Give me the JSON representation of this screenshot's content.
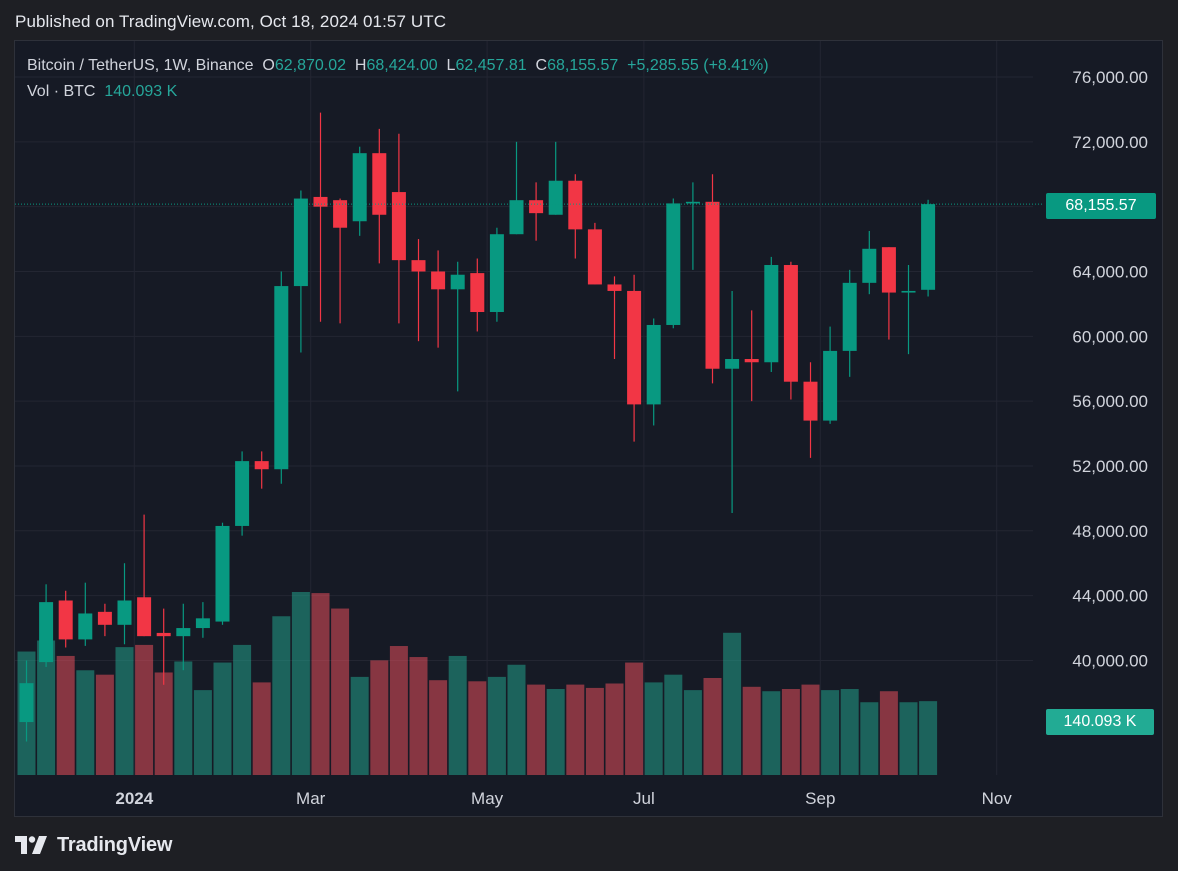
{
  "header": {
    "published": "Published on TradingView.com, Oct 18, 2024 01:57 UTC"
  },
  "legend": {
    "symbol": "Bitcoin / TetherUS, 1W, Binance",
    "o_label": "O",
    "o_value": "62,870.02",
    "h_label": "H",
    "h_value": "68,424.00",
    "l_label": "L",
    "l_value": "62,457.81",
    "c_label": "C",
    "c_value": "68,155.57",
    "change": "+5,285.55 (+8.41%)",
    "vol_label": "Vol · BTC",
    "vol_value": "140.093 K"
  },
  "tags": {
    "last_price": "68,155.57",
    "last_volume": "140.093 K"
  },
  "brand": {
    "name": "TradingView"
  },
  "colors": {
    "up": "#089981",
    "down": "#f23645",
    "up_vol": "#22ab94",
    "down_vol": "#f7525f",
    "background": "#161a25",
    "grid": "#232632",
    "text": "#d1d4dc"
  },
  "chart_data": {
    "type": "candlestick",
    "interval": "1W",
    "y_ticks": [
      "76,000.00",
      "72,000.00",
      "68,000.00",
      "64,000.00",
      "60,000.00",
      "56,000.00",
      "52,000.00",
      "48,000.00",
      "44,000.00",
      "40,000.00"
    ],
    "y_tick_values": [
      76000,
      72000,
      68000,
      64000,
      60000,
      56000,
      52000,
      48000,
      44000,
      40000
    ],
    "x_ticks": [
      {
        "label": "2024",
        "index": 5.5
      },
      {
        "label": "Mar",
        "index": 14.5
      },
      {
        "label": "May",
        "index": 23.5
      },
      {
        "label": "Jul",
        "index": 31.5
      },
      {
        "label": "Sep",
        "index": 40.5
      },
      {
        "label": "Nov",
        "index": 49.5
      }
    ],
    "candles": [
      {
        "o": 36200,
        "h": 40000,
        "l": 35000,
        "c": 38600,
        "v": 112
      },
      {
        "o": 39900,
        "h": 44700,
        "l": 39600,
        "c": 43600,
        "v": 122
      },
      {
        "o": 43700,
        "h": 44300,
        "l": 40800,
        "c": 41300,
        "v": 108
      },
      {
        "o": 41300,
        "h": 44800,
        "l": 40900,
        "c": 42900,
        "v": 95
      },
      {
        "o": 43000,
        "h": 43500,
        "l": 41500,
        "c": 42200,
        "v": 91
      },
      {
        "o": 42200,
        "h": 46000,
        "l": 41000,
        "c": 43700,
        "v": 116
      },
      {
        "o": 43900,
        "h": 49000,
        "l": 41500,
        "c": 41500,
        "v": 118
      },
      {
        "o": 41700,
        "h": 43200,
        "l": 38500,
        "c": 41500,
        "v": 93
      },
      {
        "o": 41500,
        "h": 43500,
        "l": 39400,
        "c": 42000,
        "v": 103
      },
      {
        "o": 42000,
        "h": 43600,
        "l": 41400,
        "c": 42600,
        "v": 77
      },
      {
        "o": 42400,
        "h": 48500,
        "l": 42200,
        "c": 48300,
        "v": 102
      },
      {
        "o": 48300,
        "h": 52900,
        "l": 47700,
        "c": 52300,
        "v": 118
      },
      {
        "o": 52300,
        "h": 52900,
        "l": 50600,
        "c": 51800,
        "v": 84
      },
      {
        "o": 51800,
        "h": 64000,
        "l": 50900,
        "c": 63100,
        "v": 144
      },
      {
        "o": 63100,
        "h": 69000,
        "l": 59000,
        "c": 68500,
        "v": 166
      },
      {
        "o": 68600,
        "h": 73800,
        "l": 60900,
        "c": 68000,
        "v": 165
      },
      {
        "o": 68400,
        "h": 68500,
        "l": 60800,
        "c": 66700,
        "v": 151
      },
      {
        "o": 67100,
        "h": 71700,
        "l": 66200,
        "c": 71300,
        "v": 89
      },
      {
        "o": 71300,
        "h": 72800,
        "l": 64500,
        "c": 67500,
        "v": 104
      },
      {
        "o": 68900,
        "h": 72500,
        "l": 60800,
        "c": 64700,
        "v": 117
      },
      {
        "o": 64700,
        "h": 66000,
        "l": 59700,
        "c": 64000,
        "v": 107
      },
      {
        "o": 64000,
        "h": 65300,
        "l": 59300,
        "c": 62900,
        "v": 86
      },
      {
        "o": 62900,
        "h": 64600,
        "l": 56600,
        "c": 63800,
        "v": 108
      },
      {
        "o": 63900,
        "h": 64800,
        "l": 60300,
        "c": 61500,
        "v": 85
      },
      {
        "o": 61500,
        "h": 66700,
        "l": 60900,
        "c": 66300,
        "v": 89
      },
      {
        "o": 66300,
        "h": 72000,
        "l": 66300,
        "c": 68400,
        "v": 100
      },
      {
        "o": 68400,
        "h": 69500,
        "l": 65900,
        "c": 67600,
        "v": 82
      },
      {
        "o": 67500,
        "h": 72000,
        "l": 67500,
        "c": 69600,
        "v": 78
      },
      {
        "o": 69600,
        "h": 70000,
        "l": 64800,
        "c": 66600,
        "v": 82
      },
      {
        "o": 66600,
        "h": 67000,
        "l": 63200,
        "c": 63200,
        "v": 79
      },
      {
        "o": 63200,
        "h": 63700,
        "l": 58600,
        "c": 62800,
        "v": 83
      },
      {
        "o": 62800,
        "h": 63800,
        "l": 53500,
        "c": 55800,
        "v": 102
      },
      {
        "o": 55800,
        "h": 61100,
        "l": 54500,
        "c": 60700,
        "v": 84
      },
      {
        "o": 60700,
        "h": 68500,
        "l": 60500,
        "c": 68200,
        "v": 91
      },
      {
        "o": 68200,
        "h": 69500,
        "l": 64100,
        "c": 68300,
        "v": 77
      },
      {
        "o": 68300,
        "h": 70000,
        "l": 57100,
        "c": 58000,
        "v": 88
      },
      {
        "o": 58000,
        "h": 62800,
        "l": 49100,
        "c": 58600,
        "v": 129
      },
      {
        "o": 58600,
        "h": 61600,
        "l": 56000,
        "c": 58400,
        "v": 80
      },
      {
        "o": 58400,
        "h": 64900,
        "l": 57800,
        "c": 64400,
        "v": 76
      },
      {
        "o": 64400,
        "h": 64600,
        "l": 56100,
        "c": 57200,
        "v": 78
      },
      {
        "o": 57200,
        "h": 58400,
        "l": 52500,
        "c": 54800,
        "v": 82
      },
      {
        "o": 54800,
        "h": 60600,
        "l": 54600,
        "c": 59100,
        "v": 77
      },
      {
        "o": 59100,
        "h": 64100,
        "l": 57500,
        "c": 63300,
        "v": 78
      },
      {
        "o": 63300,
        "h": 66500,
        "l": 62600,
        "c": 65400,
        "v": 66
      },
      {
        "o": 65500,
        "h": 65500,
        "l": 59800,
        "c": 62700,
        "v": 76
      },
      {
        "o": 62700,
        "h": 64400,
        "l": 58900,
        "c": 62800,
        "v": 66
      },
      {
        "o": 62870.02,
        "h": 68424,
        "l": 62457.81,
        "c": 68155.57,
        "v": 67
      }
    ]
  }
}
